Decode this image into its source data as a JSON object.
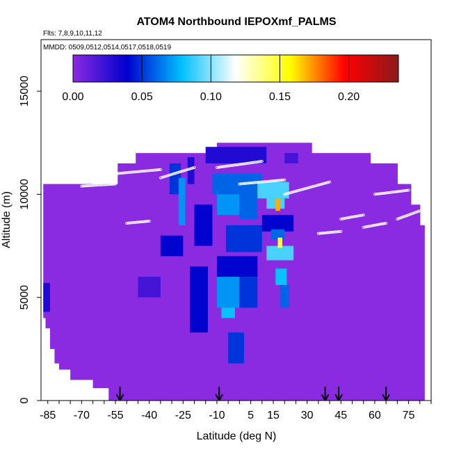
{
  "chart_data": {
    "type": "heatmap",
    "title": "ATOM4 Northbound IEPOXmf_PALMS",
    "subtitle_flights": "Flts: 7,8,9,10,11,12",
    "subtitle_dates": "MMDD: 0509,0512,0514,0517,0518,0519",
    "xlabel": "Latitude (deg N)",
    "ylabel": "Altitude (m)",
    "xlim": [
      -88,
      85
    ],
    "ylim": [
      0,
      17500
    ],
    "x_ticks": [
      -85,
      -70,
      -55,
      -40,
      -25,
      -10,
      5,
      15,
      30,
      45,
      60,
      75
    ],
    "y_ticks": [
      0,
      5000,
      10000,
      15000
    ],
    "colorbar": {
      "min": 0,
      "max": 0.236,
      "ticks": [
        0.0,
        0.05,
        0.1,
        0.15,
        0.2
      ],
      "tick_labels": [
        "0.00",
        "0.05",
        "0.10",
        "0.15",
        "0.20"
      ],
      "colors": [
        "#8a2be2",
        "#0000cd",
        "#00bfff",
        "#ffffff",
        "#ffff00",
        "#ff0000",
        "#8b1a1a"
      ]
    },
    "background_value_color": "#8a2be2",
    "coverage": [
      {
        "lat": [
          -87,
          -86
        ],
        "alt": [
          4000,
          10500
        ]
      },
      {
        "lat": [
          -86,
          -84
        ],
        "alt": [
          3500,
          10500
        ]
      },
      {
        "lat": [
          -84,
          -82
        ],
        "alt": [
          2500,
          10500
        ]
      },
      {
        "lat": [
          -82,
          -80
        ],
        "alt": [
          1800,
          10500
        ]
      },
      {
        "lat": [
          -80,
          -75
        ],
        "alt": [
          1500,
          10500
        ]
      },
      {
        "lat": [
          -75,
          -65
        ],
        "alt": [
          1000,
          10500
        ]
      },
      {
        "lat": [
          -65,
          -58
        ],
        "alt": [
          600,
          10500
        ]
      },
      {
        "lat": [
          -58,
          -54
        ],
        "alt": [
          0,
          10500
        ]
      },
      {
        "lat": [
          -54,
          -46
        ],
        "alt": [
          0,
          11500
        ]
      },
      {
        "lat": [
          -46,
          -35
        ],
        "alt": [
          0,
          12000
        ]
      },
      {
        "lat": [
          -35,
          -10
        ],
        "alt": [
          0,
          12000
        ]
      },
      {
        "lat": [
          -10,
          32
        ],
        "alt": [
          0,
          12500
        ]
      },
      {
        "lat": [
          32,
          58
        ],
        "alt": [
          0,
          12000
        ]
      },
      {
        "lat": [
          58,
          70
        ],
        "alt": [
          0,
          11500
        ]
      },
      {
        "lat": [
          70,
          76
        ],
        "alt": [
          0,
          10500
        ]
      },
      {
        "lat": [
          76,
          80
        ],
        "alt": [
          0,
          9500
        ]
      },
      {
        "lat": [
          80,
          82
        ],
        "alt": [
          0,
          8500
        ]
      }
    ],
    "cells": [
      {
        "lat": [
          -87,
          -84
        ],
        "alt": [
          4300,
          5700
        ],
        "value": 0.03
      },
      {
        "lat": [
          -31,
          -26
        ],
        "alt": [
          10000,
          11500
        ],
        "value": 0.05
      },
      {
        "lat": [
          -27,
          -24
        ],
        "alt": [
          8500,
          10800
        ],
        "value": 0.07
      },
      {
        "lat": [
          -23,
          -20
        ],
        "alt": [
          10500,
          11800
        ],
        "value": 0.03
      },
      {
        "lat": [
          -35,
          -25
        ],
        "alt": [
          7000,
          8000
        ],
        "value": 0.04
      },
      {
        "lat": [
          -45,
          -35
        ],
        "alt": [
          5000,
          6000
        ],
        "value": 0.02
      },
      {
        "lat": [
          -22,
          -14
        ],
        "alt": [
          3300,
          6500
        ],
        "value": 0.04
      },
      {
        "lat": [
          -20,
          -12
        ],
        "alt": [
          7500,
          9500
        ],
        "value": 0.04
      },
      {
        "lat": [
          -15,
          12
        ],
        "alt": [
          11500,
          12300
        ],
        "value": 0.03
      },
      {
        "lat": [
          -12,
          10
        ],
        "alt": [
          10000,
          11000
        ],
        "value": 0.06
      },
      {
        "lat": [
          -10,
          0
        ],
        "alt": [
          9000,
          10000
        ],
        "value": 0.07
      },
      {
        "lat": [
          0,
          8
        ],
        "alt": [
          8800,
          10000
        ],
        "value": 0.06
      },
      {
        "lat": [
          -6,
          10
        ],
        "alt": [
          7200,
          8500
        ],
        "value": 0.05
      },
      {
        "lat": [
          -10,
          8
        ],
        "alt": [
          6000,
          7000
        ],
        "value": 0.04
      },
      {
        "lat": [
          -10,
          0
        ],
        "alt": [
          4500,
          6000
        ],
        "value": 0.07
      },
      {
        "lat": [
          -8,
          -2
        ],
        "alt": [
          4000,
          4500
        ],
        "value": 0.08
      },
      {
        "lat": [
          0,
          8
        ],
        "alt": [
          4500,
          6000
        ],
        "value": 0.05
      },
      {
        "lat": [
          -5,
          2
        ],
        "alt": [
          1800,
          3300
        ],
        "value": 0.05
      },
      {
        "lat": [
          8,
          22
        ],
        "alt": [
          9800,
          10600
        ],
        "value": 0.09
      },
      {
        "lat": [
          12,
          20
        ],
        "alt": [
          9300,
          9800
        ],
        "value": 0.09
      },
      {
        "lat": [
          10,
          24
        ],
        "alt": [
          8200,
          9000
        ],
        "value": 0.04
      },
      {
        "lat": [
          14,
          20
        ],
        "alt": [
          7800,
          8300
        ],
        "value": 0.06
      },
      {
        "lat": [
          12,
          24
        ],
        "alt": [
          6800,
          7500
        ],
        "value": 0.09
      },
      {
        "lat": [
          16,
          21
        ],
        "alt": [
          5600,
          6400
        ],
        "value": 0.08
      },
      {
        "lat": [
          18,
          22
        ],
        "alt": [
          4500,
          5600
        ],
        "value": 0.06
      },
      {
        "lat": [
          20,
          26
        ],
        "alt": [
          11500,
          12000
        ],
        "value": 0.02
      },
      {
        "lat": [
          16,
          18
        ],
        "alt": [
          9200,
          9800
        ],
        "value": 0.17
      },
      {
        "lat": [
          17,
          19
        ],
        "alt": [
          7400,
          7900
        ],
        "value": 0.15
      }
    ],
    "arrows_lat": [
      -53,
      -9,
      38,
      44,
      65
    ],
    "tracks": [
      {
        "lat": [
          -70,
          -55
        ],
        "alt": [
          10400,
          10500
        ]
      },
      {
        "lat": [
          -55,
          -35
        ],
        "alt": [
          11000,
          11200
        ]
      },
      {
        "lat": [
          -35,
          -20
        ],
        "alt": [
          10800,
          11300
        ]
      },
      {
        "lat": [
          -10,
          10
        ],
        "alt": [
          11300,
          11600
        ]
      },
      {
        "lat": [
          0,
          20
        ],
        "alt": [
          10500,
          10700
        ]
      },
      {
        "lat": [
          20,
          40
        ],
        "alt": [
          10000,
          10600
        ]
      },
      {
        "lat": [
          45,
          55
        ],
        "alt": [
          8800,
          9000
        ]
      },
      {
        "lat": [
          55,
          65
        ],
        "alt": [
          8400,
          8600
        ]
      },
      {
        "lat": [
          60,
          75
        ],
        "alt": [
          10000,
          10200
        ]
      },
      {
        "lat": [
          -50,
          -40
        ],
        "alt": [
          8600,
          8700
        ]
      },
      {
        "lat": [
          35,
          45
        ],
        "alt": [
          8100,
          8200
        ]
      },
      {
        "lat": [
          70,
          80
        ],
        "alt": [
          8800,
          9200
        ]
      }
    ]
  }
}
